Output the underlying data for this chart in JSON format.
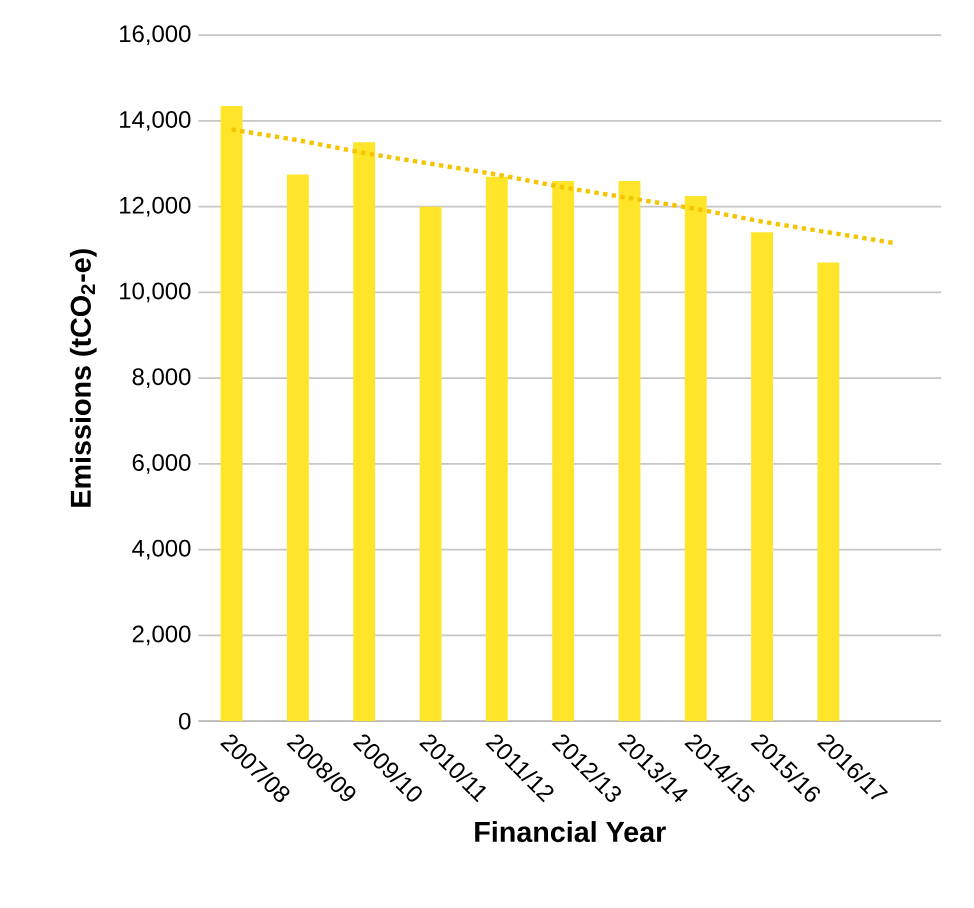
{
  "chart_data": {
    "type": "bar",
    "xlabel": "Financial Year",
    "ylabel": "Emissions (tCO$_{2}$-e)",
    "categories": [
      "2007/08",
      "2008/09",
      "2009/10",
      "2010/11",
      "2011/12",
      "2012/13",
      "2013/14",
      "2014/15",
      "2015/16",
      "2016/17",
      null
    ],
    "series": [
      {
        "color": "#ffe52a",
        "values": [
          14350,
          12750,
          13500,
          12000,
          12700,
          12600,
          12600,
          12250,
          11400,
          10700,
          null
        ]
      },
      {
        "type": "line",
        "color": "#f5c400",
        "line_style": "dotted",
        "marker": "none",
        "values": [
          13800,
          13550,
          13250,
          13000,
          12750,
          12450,
          12200,
          11950,
          11650,
          11400,
          11150
        ]
      }
    ],
    "ylim": [
      0,
      16000
    ],
    "yticks": [
      0,
      {
        "value": 2000,
        "label": "2,000"
      },
      {
        "value": 4000,
        "label": "4,000"
      },
      {
        "value": 6000,
        "label": "6,000"
      },
      {
        "value": 8000,
        "label": "8,000"
      },
      {
        "value": 10000,
        "label": "10,000"
      },
      {
        "value": 12000,
        "label": "12,000"
      },
      {
        "value": 14000,
        "label": "14,000"
      },
      {
        "value": 16000,
        "label": "16,000"
      }
    ],
    "grid": "y"
  }
}
